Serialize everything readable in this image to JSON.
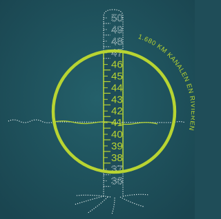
{
  "caption": "1.680 KM KANALEN EN RIVIEREN",
  "gauge": {
    "labels": [
      50,
      49,
      48,
      47,
      46,
      45,
      44,
      43,
      42,
      41,
      40,
      39,
      38,
      37,
      36
    ]
  }
}
